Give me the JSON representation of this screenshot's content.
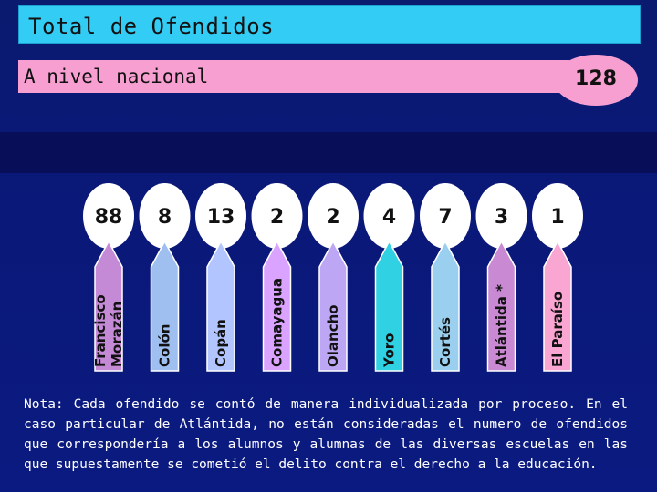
{
  "header": {
    "title": "Total de Ofendidos"
  },
  "subheader": {
    "label": "A nivel nacional",
    "total": "128"
  },
  "chart_data": {
    "type": "bar",
    "title": "Total de Ofendidos",
    "subtitle": "A nivel nacional",
    "categories": [
      "Francisco Morazán",
      "Colón",
      "Copán",
      "Comayagua",
      "Olancho",
      "Yoro",
      "Cortés",
      "Atlántida *",
      "El Paraíso"
    ],
    "values": [
      88,
      8,
      13,
      2,
      2,
      4,
      7,
      3,
      1
    ],
    "value_labels": [
      "88",
      "8",
      "13",
      "2",
      "2",
      "4",
      "7",
      "3",
      "1"
    ],
    "category_lines": [
      [
        "Francisco",
        "Morazán"
      ],
      [
        "Colón"
      ],
      [
        "Copán"
      ],
      [
        "Comayagua"
      ],
      [
        "Olancho"
      ],
      [
        "Yoro"
      ],
      [
        "Cortés"
      ],
      [
        "Atlántida *"
      ],
      [
        "El Paraíso"
      ]
    ],
    "colors": [
      "#c58ad6",
      "#9fbff0",
      "#b3c5ff",
      "#d9a3ff",
      "#bda7f5",
      "#2fd1e3",
      "#9bcfef",
      "#c98ad3",
      "#f9a6d2"
    ],
    "total": 128
  },
  "note": "Nota: Cada ofendido se contó de manera individualizada por proceso. En el caso particular de Atlántida, no están consideradas el numero de ofendidos que correspondería a los alumnos y alumnas de las diversas escuelas en las que supuestamente se cometió el delito contra el derecho a la educación."
}
